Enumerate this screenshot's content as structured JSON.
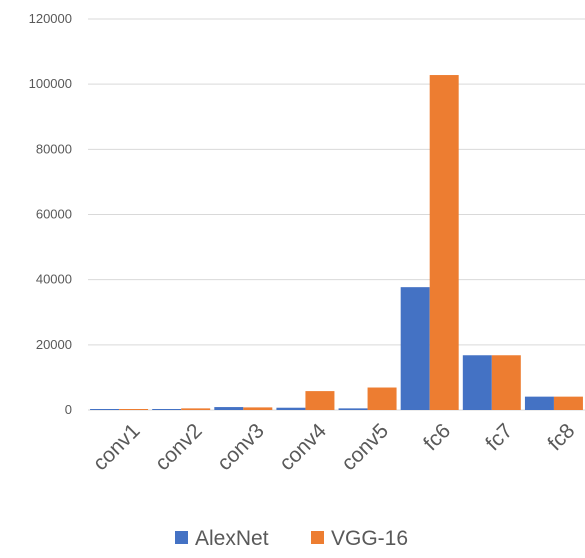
{
  "chart_data": {
    "type": "bar",
    "categories": [
      "conv1",
      "conv2",
      "conv3",
      "conv4",
      "conv5",
      "fc6",
      "fc7",
      "fc8"
    ],
    "series": [
      {
        "name": "AlexNet",
        "color": "#4472c4",
        "values": [
          100,
          300,
          900,
          700,
          500,
          37700,
          16800,
          4100
        ]
      },
      {
        "name": "VGG-16",
        "color": "#ed7d31",
        "values": [
          200,
          500,
          800,
          5800,
          6900,
          102800,
          16800,
          4100
        ]
      }
    ],
    "y_ticks": [
      "0",
      "20000",
      "40000",
      "60000",
      "80000",
      "100000",
      "120000"
    ],
    "ylim": [
      0,
      120000
    ],
    "grid": true,
    "legend_position": "bottom-center"
  }
}
